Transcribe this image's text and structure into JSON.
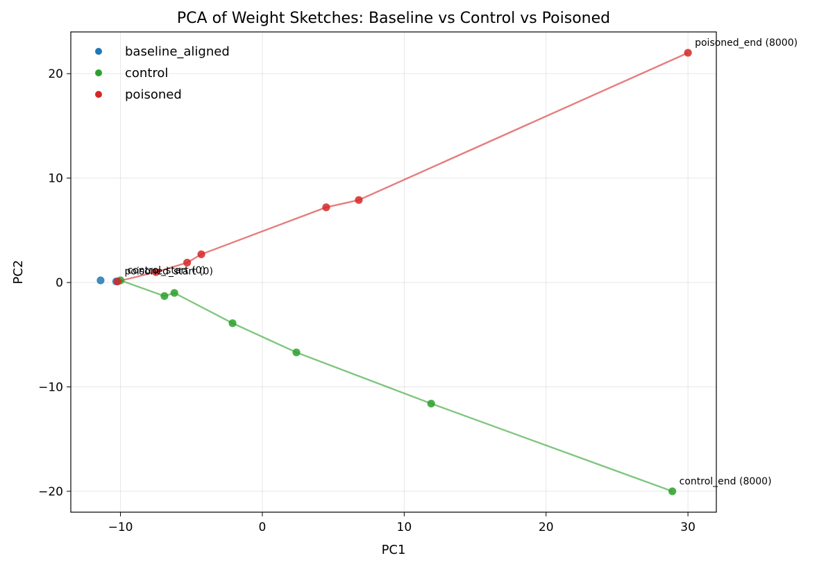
{
  "chart_data": {
    "type": "scatter",
    "title": "PCA of Weight Sketches: Baseline vs Control vs Poisoned",
    "xlabel": "PC1",
    "ylabel": "PC2",
    "xlim": [
      -13.5,
      32
    ],
    "ylim": [
      -22,
      24
    ],
    "xticks": [
      -10,
      0,
      10,
      20,
      30
    ],
    "yticks": [
      -20,
      -10,
      0,
      10,
      20
    ],
    "xtick_labels": [
      "−10",
      "0",
      "10",
      "20",
      "30"
    ],
    "ytick_labels": [
      "−20",
      "−10",
      "0",
      "10",
      "20"
    ],
    "grid": true,
    "legend_position": "top-left",
    "series": [
      {
        "name": "baseline_aligned",
        "color": "#1f77b4",
        "line": false,
        "points": [
          [
            -11.4,
            0.2
          ],
          [
            -10.3,
            0.1
          ]
        ]
      },
      {
        "name": "control",
        "color": "#2ca02c",
        "line": true,
        "points": [
          [
            -10.0,
            0.2
          ],
          [
            -6.9,
            -1.3
          ],
          [
            -6.2,
            -1.0
          ],
          [
            -2.1,
            -3.9
          ],
          [
            2.4,
            -6.7
          ],
          [
            11.9,
            -11.6
          ],
          [
            28.9,
            -20.0
          ]
        ]
      },
      {
        "name": "poisoned",
        "color": "#d62728",
        "line": true,
        "points": [
          [
            -10.2,
            0.1
          ],
          [
            -7.5,
            1.0
          ],
          [
            -5.3,
            1.9
          ],
          [
            -4.3,
            2.7
          ],
          [
            4.5,
            7.2
          ],
          [
            6.8,
            7.9
          ],
          [
            30.0,
            22.0
          ]
        ]
      }
    ],
    "annotations": [
      {
        "text": "control_start (0)",
        "x": -10.0,
        "y": 0.2
      },
      {
        "text": "poisoned_start (0)",
        "x": -10.2,
        "y": 0.1
      },
      {
        "text": "poisoned_end (8000)",
        "x": 30.0,
        "y": 22.0
      },
      {
        "text": "control_end (8000)",
        "x": 28.9,
        "y": -20.0
      }
    ]
  }
}
